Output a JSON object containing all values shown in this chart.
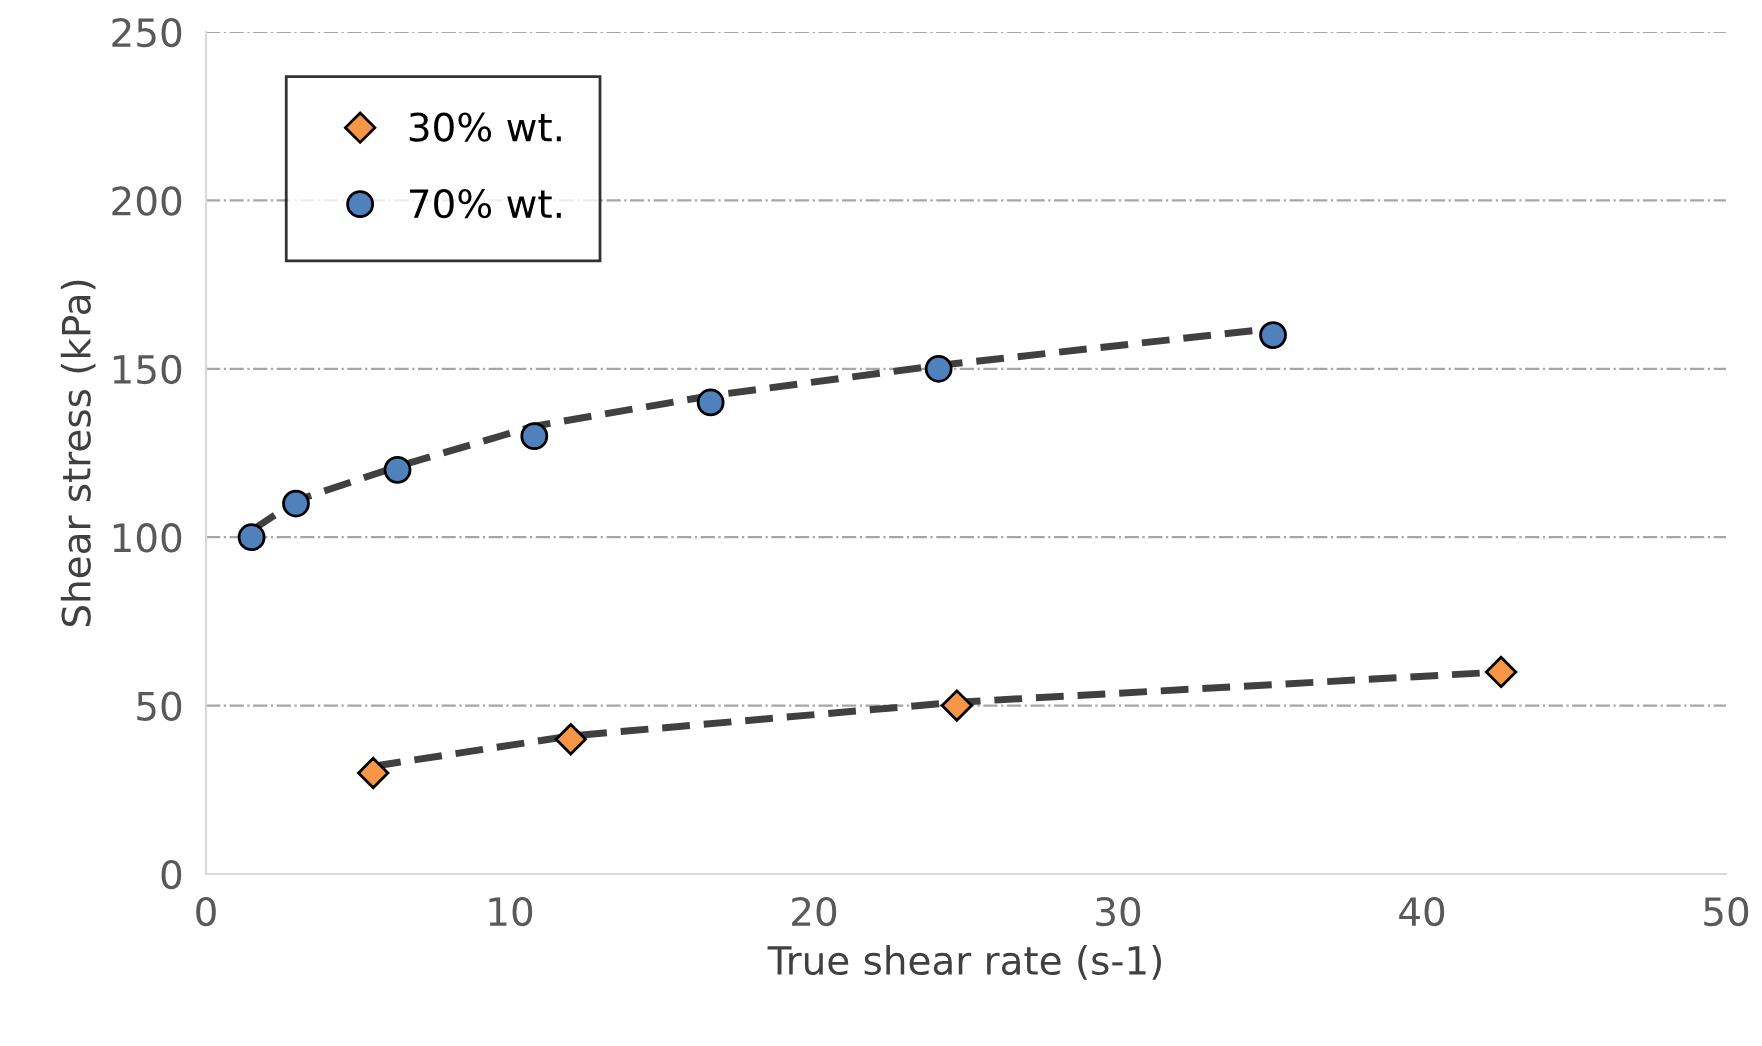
{
  "chart_data": {
    "type": "scatter",
    "xlabel": "True shear rate (s-1)",
    "ylabel": "Shear stress (kPa)",
    "xlim": [
      0,
      50
    ],
    "xticks": [
      0,
      10,
      20,
      30,
      40,
      50
    ],
    "ylim": [
      0,
      250
    ],
    "yticks": [
      0,
      50,
      100,
      150,
      200,
      250
    ],
    "grid": "y",
    "legend": "top left",
    "series": [
      {
        "name": "30% wt.",
        "color": "#f79646",
        "marker": "diamond",
        "x": [
          5.5,
          12.0,
          24.7,
          42.6
        ],
        "values": [
          30,
          40,
          50,
          60
        ]
      },
      {
        "name": "70% wt.",
        "color": "#4f81bd",
        "marker": "circle",
        "x": [
          1.5,
          2.96,
          6.3,
          10.8,
          16.6,
          24.1,
          35.1
        ],
        "values": [
          100,
          110,
          120,
          130,
          140,
          150,
          160
        ]
      },
      {
        "type": "line",
        "color": "#404040",
        "line_style": "dashed",
        "x": [
          5.5,
          12.0,
          24.7,
          42.6
        ],
        "values": [
          32,
          41,
          51,
          60
        ]
      },
      {
        "type": "line",
        "color": "#404040",
        "line_style": "dashed",
        "x": [
          1.5,
          3.0,
          6.3,
          10.8,
          16.6,
          24.1,
          35.1
        ],
        "values": [
          102,
          111,
          121,
          133,
          142,
          151,
          162
        ]
      }
    ]
  }
}
